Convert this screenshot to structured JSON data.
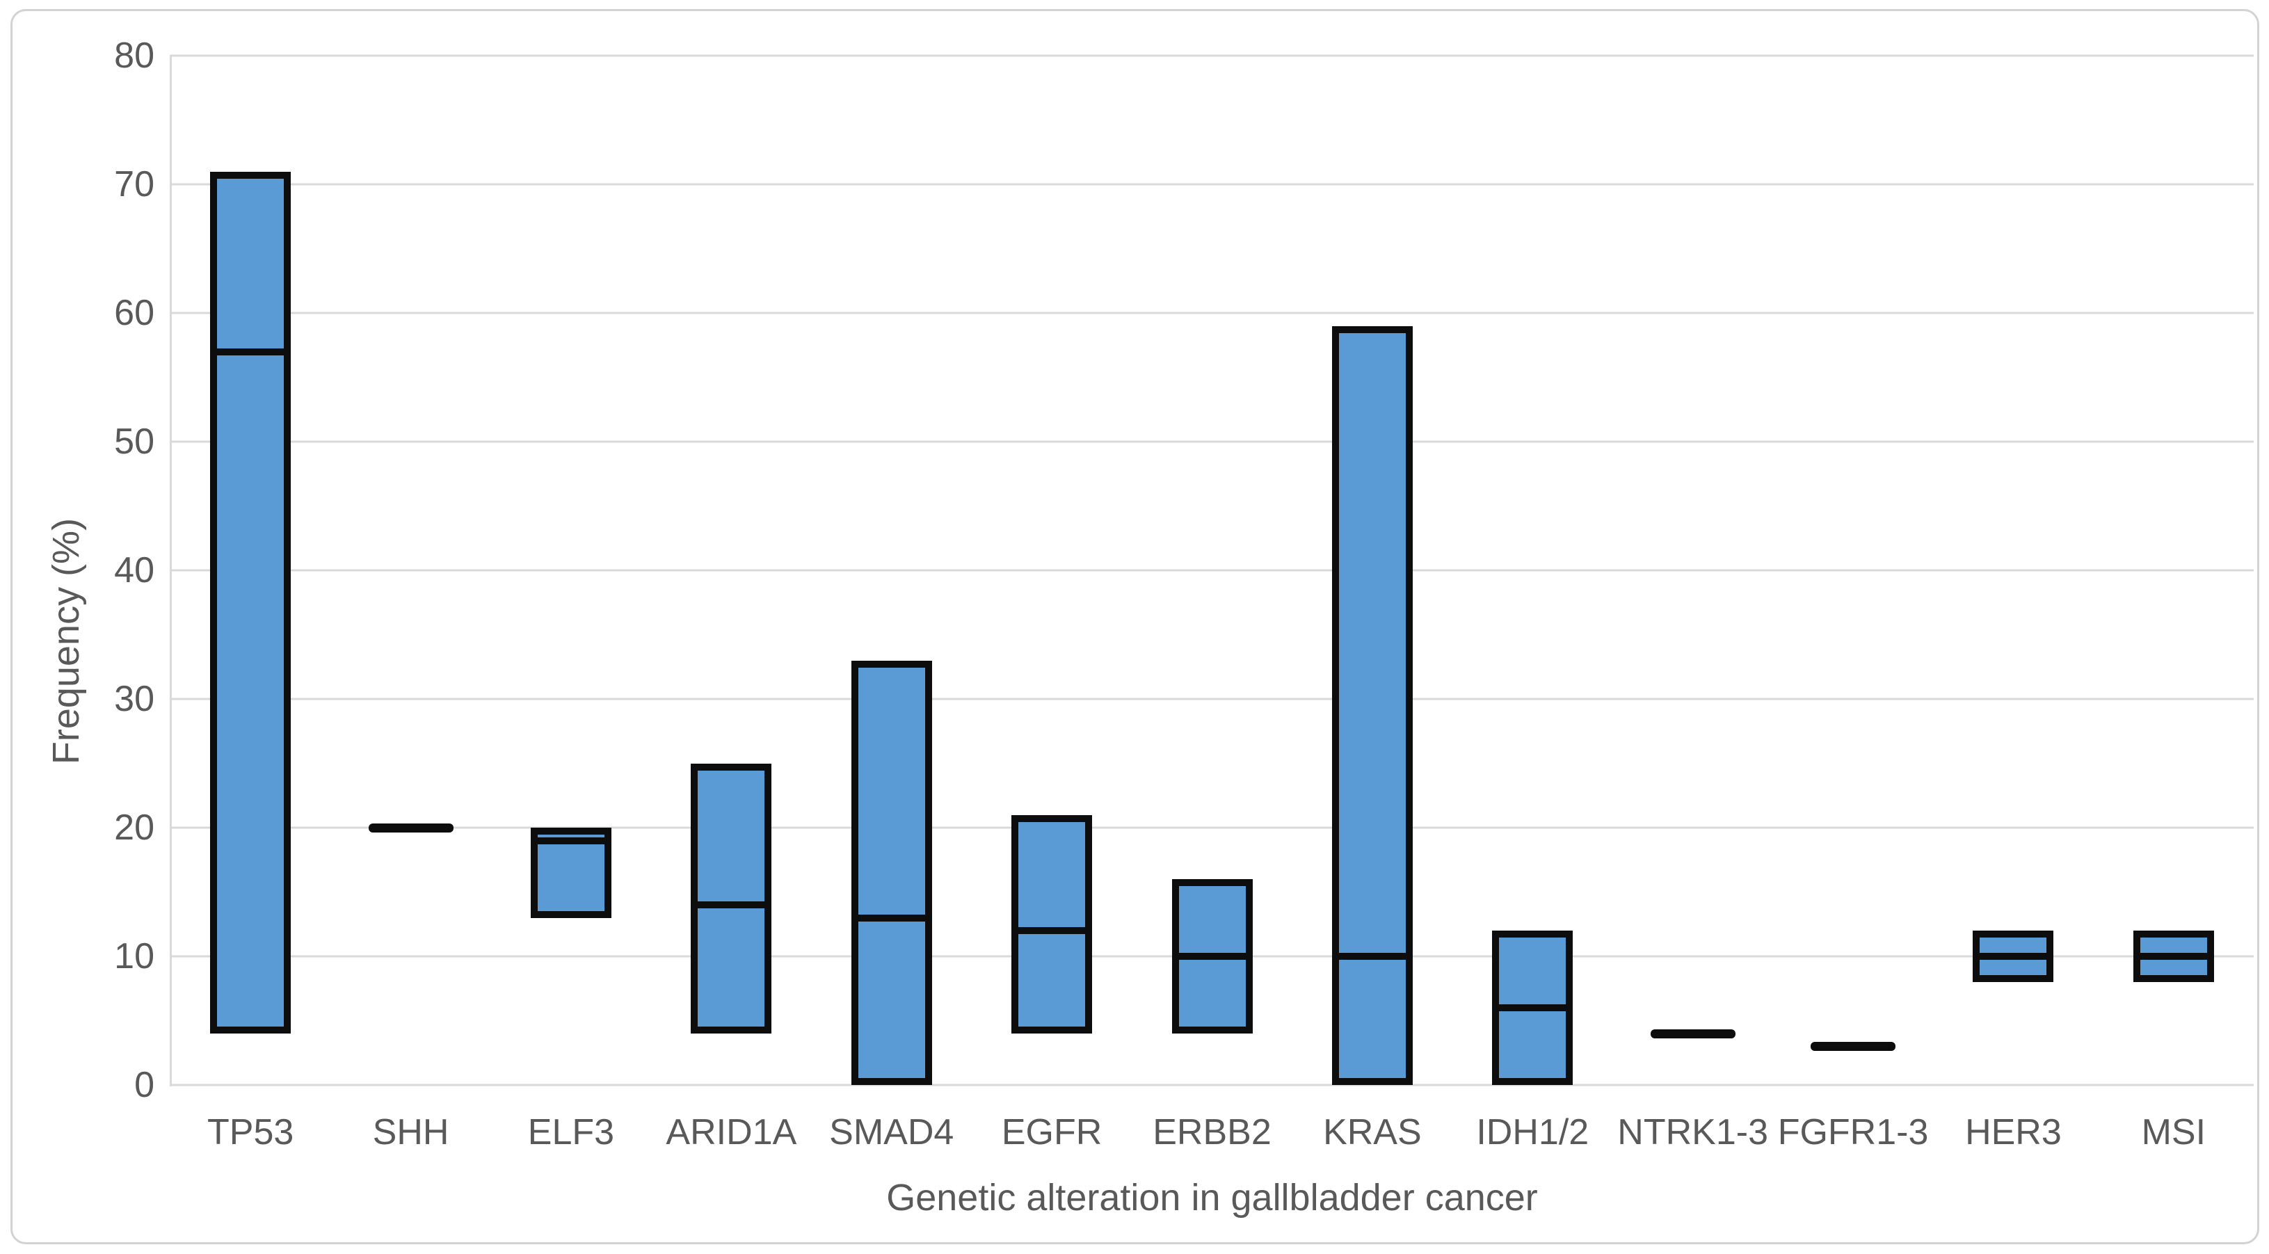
{
  "chart_data": {
    "type": "bar",
    "subtype": "floating-range-bars-with-median-line",
    "title": "",
    "xlabel": "Genetic alteration in gallbladder cancer",
    "ylabel": "Frequency (%)",
    "ylim": [
      0,
      80
    ],
    "ytick_interval": 10,
    "yticks": [
      0,
      10,
      20,
      30,
      40,
      50,
      60,
      70,
      80
    ],
    "grid": true,
    "legend": false,
    "categories": [
      "TP53",
      "SHH",
      "ELF3",
      "ARID1A",
      "SMAD4",
      "EGFR",
      "ERBB2",
      "KRAS",
      "IDH1/2",
      "NTRK1-3",
      "FGFR1-3",
      "HER3",
      "MSI"
    ],
    "points": [
      {
        "label": "TP53",
        "low": 4,
        "high": 71,
        "median": 57
      },
      {
        "label": "SHH",
        "low": 20,
        "high": 20,
        "median": 20
      },
      {
        "label": "ELF3",
        "low": 13,
        "high": 20,
        "median": 19
      },
      {
        "label": "ARID1A",
        "low": 4,
        "high": 25,
        "median": 14
      },
      {
        "label": "SMAD4",
        "low": 0,
        "high": 33,
        "median": 13
      },
      {
        "label": "EGFR",
        "low": 4,
        "high": 21,
        "median": 12
      },
      {
        "label": "ERBB2",
        "low": 4,
        "high": 16,
        "median": 10
      },
      {
        "label": "KRAS",
        "low": 0,
        "high": 59,
        "median": 10
      },
      {
        "label": "IDH1/2",
        "low": 0,
        "high": 12,
        "median": 6
      },
      {
        "label": "NTRK1-3",
        "low": 4,
        "high": 4,
        "median": 4
      },
      {
        "label": "FGFR1-3",
        "low": 3,
        "high": 3,
        "median": 3
      },
      {
        "label": "HER3",
        "low": 8,
        "high": 12,
        "median": 10
      },
      {
        "label": "MSI",
        "low": 8,
        "high": 12,
        "median": 10
      }
    ],
    "colors": {
      "bar_fill": "#5B9BD5",
      "bar_border": "#0D0D0D",
      "median_line": "#0D0D0D",
      "gridline": "#D9D9D9",
      "axis_line": "#D9D9D9",
      "text": "#595959",
      "chart_border": "#D3D3D3",
      "background": "#FFFFFF"
    }
  }
}
